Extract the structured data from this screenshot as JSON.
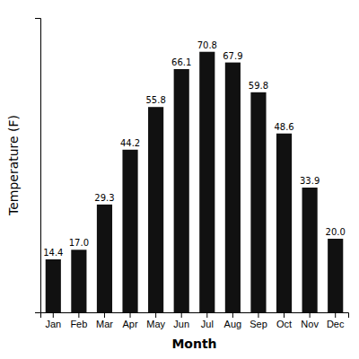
{
  "chart_data": {
    "type": "bar",
    "categories": [
      "Jan",
      "Feb",
      "Mar",
      "Apr",
      "May",
      "Jun",
      "Jul",
      "Aug",
      "Sep",
      "Oct",
      "Nov",
      "Dec"
    ],
    "values": [
      14.4,
      17.0,
      29.3,
      44.2,
      55.8,
      66.1,
      70.8,
      67.9,
      59.8,
      48.6,
      33.9,
      20.0
    ],
    "value_labels": [
      "14.4",
      "17.0",
      "29.3",
      "44.2",
      "55.8",
      "66.1",
      "70.8",
      "67.9",
      "59.8",
      "48.6",
      "33.9",
      "20.0"
    ],
    "data_labels": true,
    "color": "#111111",
    "x_label": "Month",
    "y_label": "Temperature (F)",
    "ylim": [
      0,
      80
    ],
    "tick_labels": "x"
  }
}
